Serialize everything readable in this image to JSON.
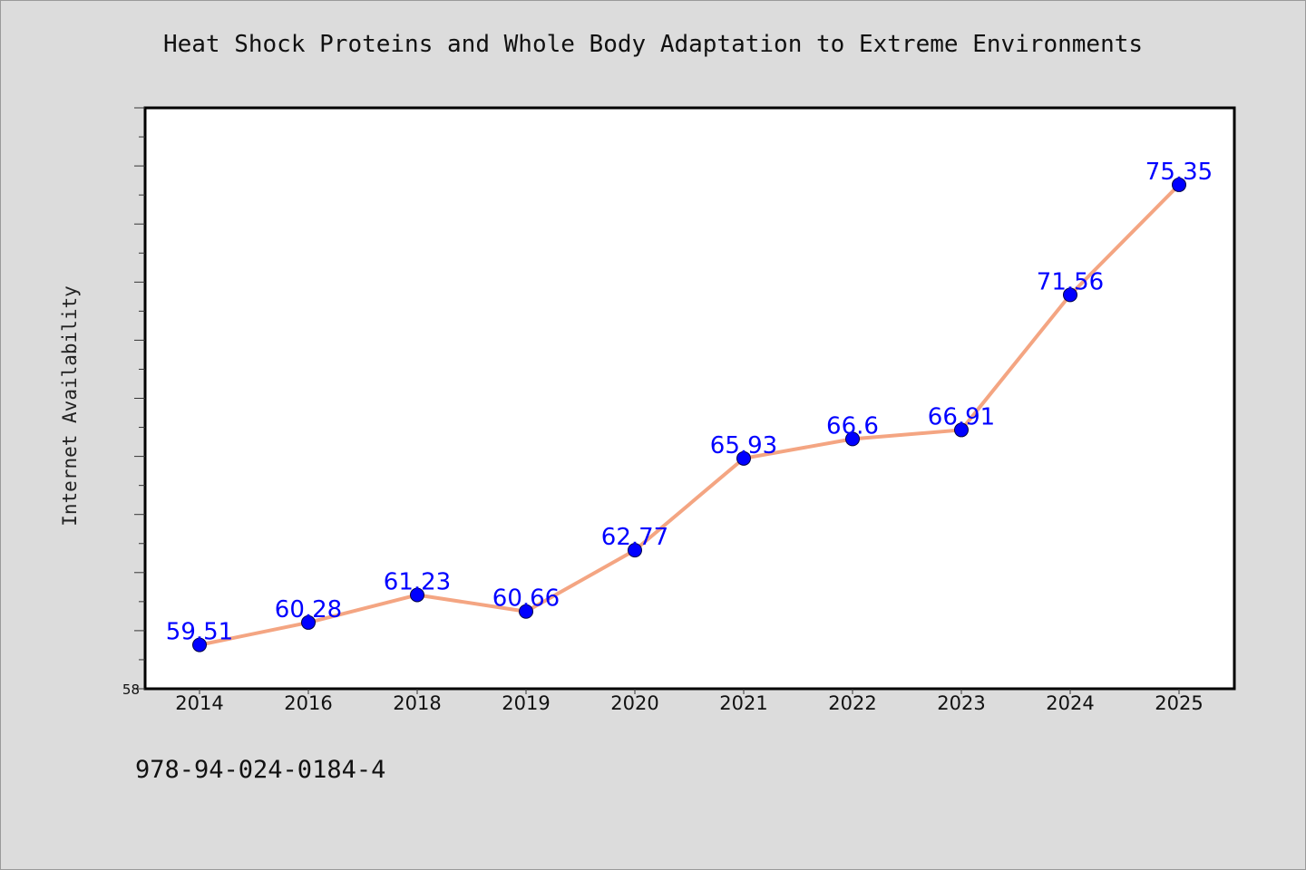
{
  "chart_data": {
    "type": "line",
    "title": "Heat Shock Proteins and Whole Body Adaptation to Extreme Environments",
    "xlabel": "",
    "ylabel": "Internet Availability",
    "categories": [
      "2014",
      "2016",
      "2018",
      "2019",
      "2020",
      "2021",
      "2022",
      "2023",
      "2024",
      "2025"
    ],
    "series": [
      {
        "values": [
          59.51,
          60.28,
          61.23,
          60.66,
          62.77,
          65.93,
          66.6,
          66.91,
          71.56,
          75.35
        ],
        "labels": [
          "59.51",
          "60.28",
          "61.23",
          "60.66",
          "62.77",
          "65.93",
          "66.6",
          "66.91",
          "71.56",
          "75.35"
        ]
      }
    ],
    "ylim": [
      58,
      78
    ],
    "y_tick_labels": [
      "58"
    ],
    "grid": false,
    "legend": "none",
    "line_color": "#f4a582",
    "marker_color": "#0000ff",
    "label_color": "#0000ff"
  },
  "footer": {
    "code": "978-94-024-0184-4"
  }
}
